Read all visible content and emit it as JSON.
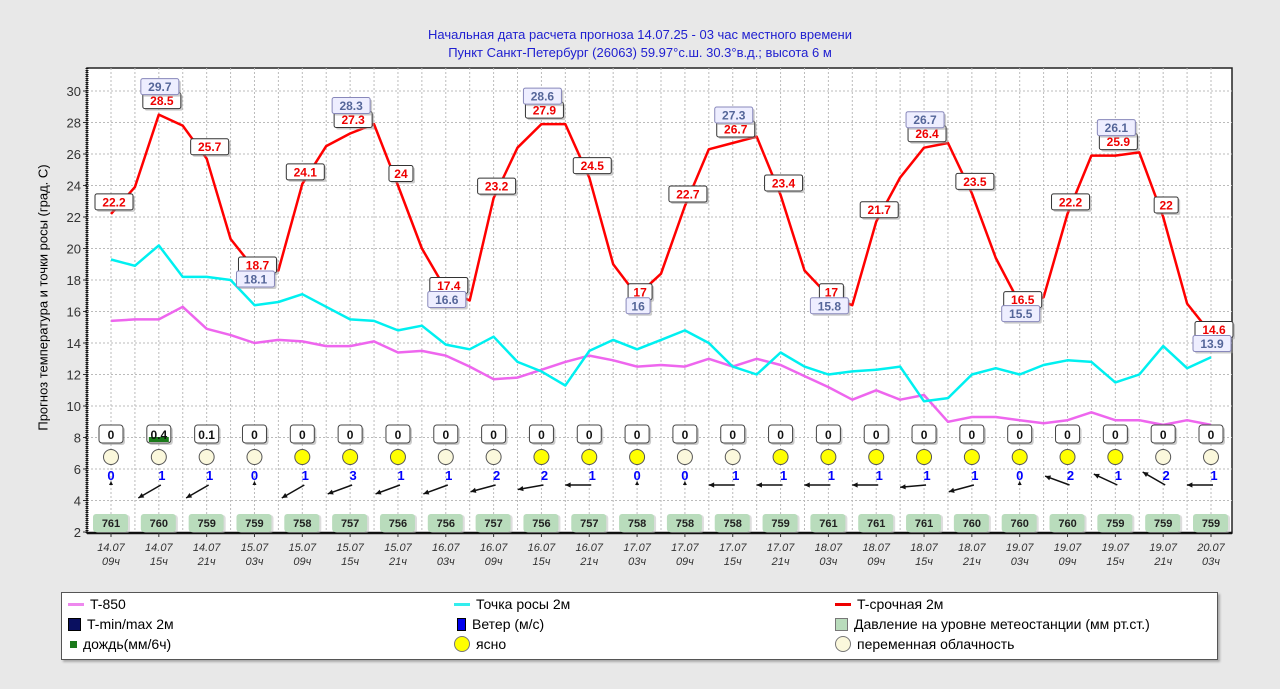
{
  "header": {
    "line1": "Начальная дата расчета прогноза 14.07.25 - 03 час местного времени",
    "line2": "Пункт  Санкт-Петербург (26063)   59.97°с.ш.  30.3°в.д.; высота 6 м"
  },
  "chart_data": {
    "type": "line",
    "title": "Начальная дата расчета прогноза 14.07.25 - 03 час местного времени",
    "subtitle": "Пункт  Санкт-Петербург (26063)   59.97°с.ш.  30.3°в.д.; высота 6 м",
    "ylabel": "Прогноз температура и точки росы (град. С)",
    "xlabel": "",
    "ylim": [
      2,
      31
    ],
    "yticks": [
      2,
      4,
      6,
      8,
      10,
      12,
      14,
      16,
      18,
      20,
      22,
      24,
      26,
      28,
      30
    ],
    "grid": true,
    "legend_position": "bottom",
    "x_step_hours": 3,
    "x_start": "14.07 09ч",
    "x_end": "20.07 03ч",
    "x_tick_labels": [
      [
        "14.07",
        "09ч"
      ],
      [
        "14.07",
        "15ч"
      ],
      [
        "14.07",
        "21ч"
      ],
      [
        "15.07",
        "03ч"
      ],
      [
        "15.07",
        "09ч"
      ],
      [
        "15.07",
        "15ч"
      ],
      [
        "15.07",
        "21ч"
      ],
      [
        "16.07",
        "03ч"
      ],
      [
        "16.07",
        "09ч"
      ],
      [
        "16.07",
        "15ч"
      ],
      [
        "16.07",
        "21ч"
      ],
      [
        "17.07",
        "03ч"
      ],
      [
        "17.07",
        "09ч"
      ],
      [
        "17.07",
        "15ч"
      ],
      [
        "17.07",
        "21ч"
      ],
      [
        "18.07",
        "03ч"
      ],
      [
        "18.07",
        "09ч"
      ],
      [
        "18.07",
        "15ч"
      ],
      [
        "18.07",
        "21ч"
      ],
      [
        "19.07",
        "03ч"
      ],
      [
        "19.07",
        "09ч"
      ],
      [
        "19.07",
        "15ч"
      ],
      [
        "19.07",
        "21ч"
      ],
      [
        "20.07",
        "03ч"
      ]
    ],
    "series": [
      {
        "name": "T-срочная 2м",
        "color": "#ff0000",
        "values": [
          22.2,
          23.9,
          28.5,
          27.8,
          25.7,
          20.6,
          18.7,
          18.6,
          24.1,
          26.5,
          27.3,
          27.9,
          24,
          20,
          17.4,
          16.7,
          23.2,
          26.4,
          27.9,
          27.9,
          24.5,
          19,
          17,
          18.4,
          22.7,
          26.3,
          26.7,
          27.1,
          23.4,
          18.6,
          17,
          16.4,
          21.7,
          24.5,
          26.4,
          26.7,
          23.5,
          19.4,
          16.5,
          16.9,
          22.2,
          25.9,
          25.9,
          26.1,
          22,
          16.5,
          14.6
        ]
      },
      {
        "name": "Точка росы 2м",
        "color": "#00f0f0",
        "values": [
          19.3,
          18.9,
          20.2,
          18.2,
          18.2,
          18.0,
          16.4,
          16.6,
          17.1,
          16.3,
          15.5,
          15.4,
          14.8,
          15.1,
          13.9,
          13.6,
          14.4,
          12.8,
          12.2,
          11.3,
          13.5,
          14.2,
          13.6,
          14.2,
          14.8,
          14.0,
          12.5,
          12.0,
          13.4,
          12.5,
          12.0,
          12.2,
          12.3,
          12.5,
          10.3,
          10.5,
          12.0,
          12.4,
          12.0,
          12.6,
          12.9,
          12.8,
          11.5,
          12.0,
          13.8,
          12.4,
          13.1
        ]
      },
      {
        "name": "T-850",
        "color": "#ee66ee",
        "values": [
          15.4,
          15.5,
          15.5,
          16.3,
          14.9,
          14.5,
          14.0,
          14.2,
          14.1,
          13.8,
          13.8,
          14.1,
          13.4,
          13.5,
          13.2,
          12.5,
          11.7,
          11.8,
          12.3,
          12.8,
          13.2,
          12.9,
          12.5,
          12.6,
          12.5,
          13.0,
          12.5,
          13.0,
          12.6,
          11.9,
          11.2,
          10.4,
          11.0,
          10.4,
          10.7,
          9.0,
          9.3,
          9.3,
          9.1,
          8.9,
          9.1,
          9.6,
          9.1,
          9.1,
          8.8,
          9.1,
          8.8
        ]
      }
    ],
    "tmax_labels": [
      {
        "index": 0,
        "value": "22.2"
      },
      {
        "index": 2,
        "value": "28.5"
      },
      {
        "index": 4,
        "value": "25.7"
      },
      {
        "index": 6,
        "value": "18.7"
      },
      {
        "index": 8,
        "value": "24.1"
      },
      {
        "index": 10,
        "value": "27.3"
      },
      {
        "index": 12,
        "value": "24"
      },
      {
        "index": 14,
        "value": "17.4"
      },
      {
        "index": 16,
        "value": "23.2"
      },
      {
        "index": 18,
        "value": "27.9"
      },
      {
        "index": 20,
        "value": "24.5"
      },
      {
        "index": 22,
        "value": "17"
      },
      {
        "index": 24,
        "value": "22.7"
      },
      {
        "index": 26,
        "value": "26.7"
      },
      {
        "index": 28,
        "value": "23.4"
      },
      {
        "index": 30,
        "value": "17"
      },
      {
        "index": 32,
        "value": "21.7"
      },
      {
        "index": 34,
        "value": "26.4"
      },
      {
        "index": 36,
        "value": "23.5"
      },
      {
        "index": 38,
        "value": "16.5"
      },
      {
        "index": 40,
        "value": "22.2"
      },
      {
        "index": 42,
        "value": "25.9"
      },
      {
        "index": 44,
        "value": "22"
      },
      {
        "index": 46,
        "value": "14.6"
      }
    ],
    "tminmax_labels": [
      {
        "index": 2,
        "value": "29.7"
      },
      {
        "index": 6,
        "value": "18.1"
      },
      {
        "index": 10,
        "value": "28.3"
      },
      {
        "index": 14,
        "value": "16.6"
      },
      {
        "index": 18,
        "value": "28.6"
      },
      {
        "index": 22,
        "value": "16"
      },
      {
        "index": 26,
        "value": "27.3"
      },
      {
        "index": 30,
        "value": "15.8"
      },
      {
        "index": 34,
        "value": "26.7"
      },
      {
        "index": 38,
        "value": "15.5"
      },
      {
        "index": 42,
        "value": "26.1"
      },
      {
        "index": 46,
        "value": "13.9"
      }
    ],
    "precip_mm_6h": [
      "0",
      "0.4",
      "0.1",
      "0",
      "0",
      "0",
      "0",
      "0",
      "0",
      "0",
      "0",
      "0",
      "0",
      "0",
      "0",
      "0",
      "0",
      "0",
      "0",
      "0",
      "0",
      "0",
      "0",
      "0"
    ],
    "cloud": [
      "partly",
      "partly",
      "partly",
      "partly",
      "clear",
      "clear",
      "clear",
      "partly",
      "partly",
      "clear",
      "clear",
      "clear",
      "partly",
      "partly",
      "clear",
      "clear",
      "clear",
      "clear",
      "clear",
      "clear",
      "clear",
      "clear",
      "partly",
      "partly"
    ],
    "wind_speed": [
      "0",
      "1",
      "1",
      "0",
      "1",
      "3",
      "1",
      "1",
      "2",
      "2",
      "1",
      "0",
      "0",
      "1",
      "1",
      "1",
      "1",
      "1",
      "1",
      "0",
      "2",
      "1",
      "2",
      "1"
    ],
    "wind_dir_deg": [
      null,
      60,
      60,
      null,
      60,
      70,
      70,
      70,
      75,
      80,
      90,
      null,
      null,
      90,
      90,
      90,
      90,
      85,
      75,
      null,
      110,
      115,
      120,
      90
    ],
    "pressure": [
      "761",
      "760",
      "759",
      "759",
      "758",
      "757",
      "756",
      "756",
      "757",
      "756",
      "757",
      "758",
      "758",
      "758",
      "759",
      "761",
      "761",
      "761",
      "760",
      "760",
      "760",
      "759",
      "759",
      "759"
    ]
  },
  "legend": {
    "t850": "T-850",
    "dew": "Точка росы 2м",
    "tsroch": "T-срочная 2м",
    "tminmax": "T-min/max 2м",
    "wind": "Ветер (м/с)",
    "pressure": "Давление на уровне метеостанции (мм рт.ст.)",
    "rain": "дождь(мм/6ч)",
    "clear": "ясно",
    "partly": "переменная облачность"
  },
  "colors": {
    "title": "#2020d0",
    "t_sroch": "#ff0000",
    "dew": "#00f0f0",
    "t850": "#ee66ee",
    "tminmax_box": "#0a1060",
    "wind": "#0000ff",
    "pressure_box": "#b9dcbc",
    "rain": "#1a7a1a",
    "clear": "#ffff00",
    "partly": "#fbf8dc"
  }
}
